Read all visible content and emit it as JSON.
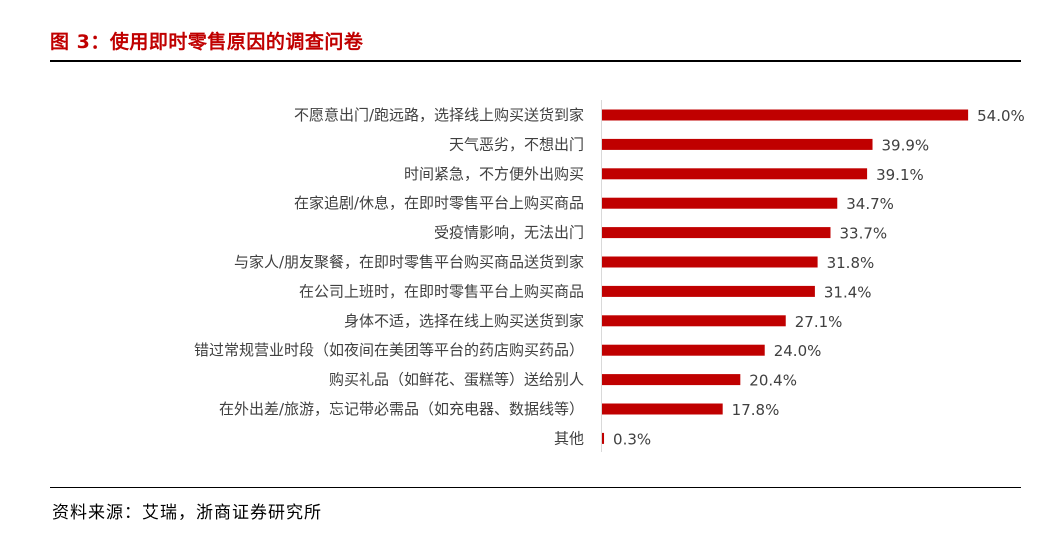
{
  "title": "图 3：使用即时零售原因的调查问卷",
  "source": "资料来源：艾瑞，浙商证券研究所",
  "chart_data": {
    "type": "bar",
    "orientation": "horizontal",
    "title": "",
    "xlabel": "",
    "ylabel": "",
    "categories": [
      "不愿意出门/跑远路，选择线上购买送货到家",
      "天气恶劣，不想出门",
      "时间紧急，不方便外出购买",
      "在家追剧/休息，在即时零售平台上购买商品",
      "受疫情影响，无法出门",
      "与家人/朋友聚餐，在即时零售平台购买商品送货到家",
      "在公司上班时，在即时零售平台上购买商品",
      "身体不适，选择在线上购买送货到家",
      "错过常规营业时段（如夜间在美团等平台的药店购买药品）",
      "购买礼品（如鲜花、蛋糕等）送给别人",
      "在外出差/旅游，忘记带必需品（如充电器、数据线等）",
      "其他"
    ],
    "values": [
      54.0,
      39.9,
      39.1,
      34.7,
      33.7,
      31.8,
      31.4,
      27.1,
      24.0,
      20.4,
      17.8,
      0.3
    ],
    "data_labels": [
      "54.0%",
      "39.9%",
      "39.1%",
      "34.7%",
      "33.7%",
      "31.8%",
      "31.4%",
      "27.1%",
      "24.0%",
      "20.4%",
      "17.8%",
      "0.3%"
    ],
    "unit": "%",
    "bar_color": "#c00000",
    "grid": false,
    "legend": "none"
  }
}
